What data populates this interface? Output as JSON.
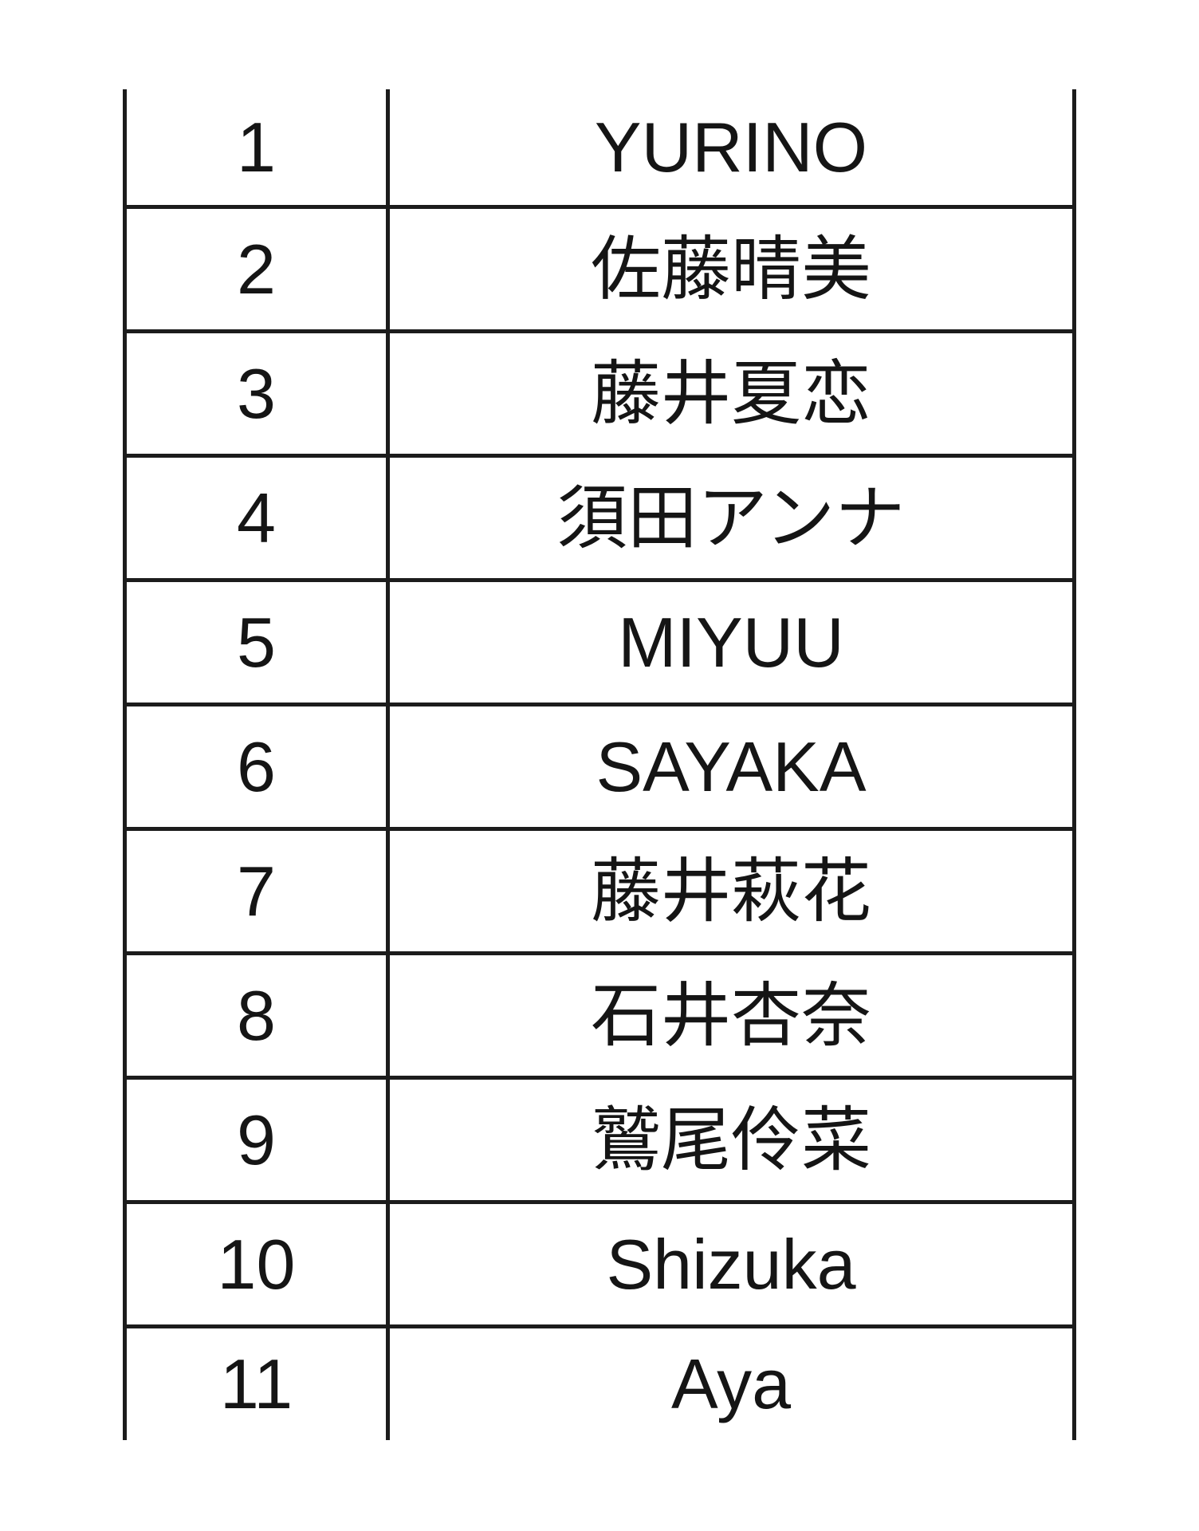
{
  "table": {
    "rows": [
      {
        "num": "1",
        "name": "YURINO"
      },
      {
        "num": "2",
        "name": "佐藤晴美"
      },
      {
        "num": "3",
        "name": "藤井夏恋"
      },
      {
        "num": "4",
        "name": "須田アンナ"
      },
      {
        "num": "5",
        "name": "MIYUU"
      },
      {
        "num": "6",
        "name": "SAYAKA"
      },
      {
        "num": "7",
        "name": "藤井萩花"
      },
      {
        "num": "8",
        "name": "石井杏奈"
      },
      {
        "num": "9",
        "name": "鷲尾伶菜"
      },
      {
        "num": "10",
        "name": "Shizuka"
      },
      {
        "num": "11",
        "name": "Aya"
      }
    ],
    "colors": {
      "border": "#1c1c1c",
      "text": "#151515",
      "background": "#ffffff"
    }
  }
}
